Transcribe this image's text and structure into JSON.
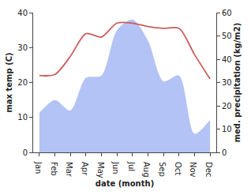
{
  "chart_data": {
    "type": "line",
    "categories": [
      "Jan",
      "Feb",
      "Mar",
      "Apr",
      "May",
      "Jun",
      "Jul",
      "Aug",
      "Sep",
      "Oct",
      "Nov",
      "Dec"
    ],
    "xlabel": "date (month)",
    "ylabel": "max temp (C)",
    "y2label": "med. precipitation (kg/m2)",
    "series": [
      {
        "name": "max temp",
        "type": "line",
        "color": "#cd5c5c",
        "values": [
          22,
          22.3,
          27.5,
          34,
          33,
          37,
          37,
          36,
          35.5,
          35.5,
          28,
          21
        ]
      },
      {
        "name": "med. precipitation",
        "type": "area",
        "axis": "y2",
        "color": "#b4c3f5",
        "values": [
          17,
          22.5,
          18,
          32,
          33,
          52.5,
          57,
          48,
          30.5,
          33,
          8,
          14
        ]
      }
    ],
    "ylim": [
      0,
      40
    ],
    "yticks": [
      0,
      10,
      20,
      30,
      40
    ],
    "y2lim": [
      0,
      60
    ],
    "y2ticks": [
      0,
      10,
      20,
      30,
      40,
      50,
      60
    ],
    "grid": false
  }
}
